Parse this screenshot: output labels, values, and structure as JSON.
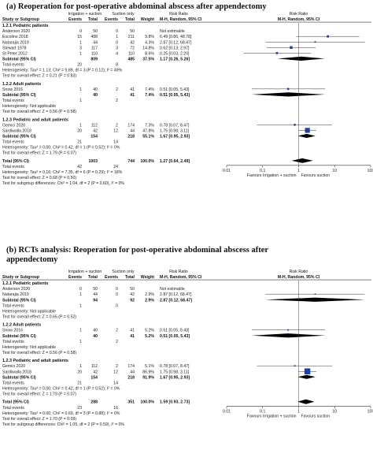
{
  "chart_data": [
    {
      "type": "forest",
      "title": "(a) Reoperation for post-operative abdominal abscess after appendectomy",
      "headers": {
        "study": "Study or Subgroup",
        "group1": "Irrigation + suction",
        "group2": "Suction only",
        "events1": "Events",
        "total1": "Total",
        "events2": "Events",
        "total2": "Total",
        "weight": "Weight",
        "rr_top": "Risk Ratio",
        "rr_bottom": "M-H, Random, 95% CI",
        "plot_top": "Risk Ratio",
        "plot_bottom": "M-H, Random, 95% CI"
      },
      "axis": {
        "scale": "log",
        "ticks": [
          "0.01",
          "0.1",
          "1",
          "10",
          "100"
        ],
        "tick_values": [
          0.01,
          0.1,
          1,
          10,
          100
        ]
      },
      "favours_left": "Favours Irrigation + suction",
      "favours_right": "Favours suction",
      "subgroups": [
        {
          "name": "1.2.1 Pediatric patients",
          "studies": [
            {
              "study": "Anderson 2020",
              "e1": "0",
              "t1": "50",
              "e2": "0",
              "t2": "50",
              "weight": "",
              "ci_text": "Not estimable",
              "rr": null,
              "lo": null,
              "hi": null,
              "w": 0
            },
            {
              "study": "Escolino 2018",
              "e1": "15",
              "t1": "488",
              "e2": "1",
              "t2": "211",
              "weight": "9.8%",
              "ci_text": "6.49 [0.86, 48.78]",
              "rr": 6.49,
              "lo": 0.86,
              "hi": 48.78,
              "w": 9.8
            },
            {
              "study": "Natarajia 2019",
              "e1": "1",
              "t1": "44",
              "e2": "0",
              "t2": "42",
              "weight": "4.3%",
              "ci_text": "2.87 [0.12, 68.47]",
              "rr": 2.87,
              "lo": 0.12,
              "hi": 68.47,
              "w": 4.3
            },
            {
              "study": "Stewart 1978",
              "e1": "3",
              "t1": "117",
              "e2": "3",
              "t2": "72",
              "weight": "14.8%",
              "ci_text": "0.62 [0.13, 2.97]",
              "rr": 0.62,
              "lo": 0.13,
              "hi": 2.97,
              "w": 14.8
            },
            {
              "study": "St Peter 2012",
              "e1": "1",
              "t1": "110",
              "e2": "4",
              "t2": "110",
              "weight": "8.6%",
              "ci_text": "0.25 [0.03, 2.20]",
              "rr": 0.25,
              "lo": 0.03,
              "hi": 2.2,
              "w": 8.6
            }
          ],
          "subtotal": {
            "label": "Subtotal (95% CI)",
            "t1": "809",
            "t2": "485",
            "weight": "37.5%",
            "ci_text": "1.17 [0.26, 5.26]",
            "rr": 1.17,
            "lo": 0.26,
            "hi": 5.26
          },
          "total_events": {
            "label": "Total events",
            "e1": "20",
            "e2": "8"
          },
          "heterogeneity": "Heterogeneity: Tau² = 1.13; Chi² = 5.89, df = 3 (P = 0.12); I² = 49%",
          "overall_effect": "Test for overall effect: Z = 0.21 (P = 0.83)"
        },
        {
          "name": "1.2.2 Adult patients",
          "studies": [
            {
              "study": "Snow 2016",
              "e1": "1",
              "t1": "40",
              "e2": "2",
              "t2": "41",
              "weight": "7.4%",
              "ci_text": "0.51 [0.05, 5.43]",
              "rr": 0.51,
              "lo": 0.05,
              "hi": 5.43,
              "w": 7.4
            }
          ],
          "subtotal": {
            "label": "Subtotal (95% CI)",
            "t1": "40",
            "t2": "41",
            "weight": "7.4%",
            "ci_text": "0.51 [0.05, 5.43]",
            "rr": 0.51,
            "lo": 0.05,
            "hi": 5.43
          },
          "total_events": {
            "label": "Total events",
            "e1": "1",
            "e2": "2"
          },
          "heterogeneity": "Heterogeneity: Not applicable",
          "overall_effect": "Test for overall effect: Z = 0.56 (P = 0.58)"
        },
        {
          "name": "1.2.3 Pediatric and adult patients",
          "studies": [
            {
              "study": "Gemici 2020",
              "e1": "1",
              "t1": "112",
              "e2": "2",
              "t2": "174",
              "weight": "7.3%",
              "ci_text": "0.78 [0.07, 8.47]",
              "rr": 0.78,
              "lo": 0.07,
              "hi": 8.47,
              "w": 7.3
            },
            {
              "study": "Sardiwalla 2018",
              "e1": "20",
              "t1": "42",
              "e2": "12",
              "t2": "44",
              "weight": "47.8%",
              "ci_text": "1.75 [0.98, 3.11]",
              "rr": 1.75,
              "lo": 0.98,
              "hi": 3.11,
              "w": 47.8
            }
          ],
          "subtotal": {
            "label": "Subtotal (95% CI)",
            "t1": "154",
            "t2": "218",
            "weight": "55.1%",
            "ci_text": "1.67 [0.95, 2.93]",
            "rr": 1.67,
            "lo": 0.95,
            "hi": 2.93
          },
          "total_events": {
            "label": "Total events",
            "e1": "21",
            "e2": "14"
          },
          "heterogeneity": "Heterogeneity: Tau² = 0.00; Chi² = 0.42, df = 1 (P = 0.52); I² = 0%",
          "overall_effect": "Test for overall effect: Z = 1.79 (P = 0.07)"
        }
      ],
      "total": {
        "label": "Total (95% CI)",
        "t1": "1003",
        "t2": "744",
        "weight": "100.0%",
        "ci_text": "1.27 [0.64, 2.49]",
        "rr": 1.27,
        "lo": 0.64,
        "hi": 2.49
      },
      "total_events": {
        "label": "Total events",
        "e1": "42",
        "e2": "24"
      },
      "footer": [
        "Heterogeneity: Tau² = 0.16; Chi² = 7.35, df = 6 (P = 0.29); I² = 18%",
        "Test for overall effect: Z = 0.68 (P = 0.50)",
        "Test for subgroup differences: Chi² = 1.04, df = 2 (P = 0.60), I² = 0%"
      ]
    },
    {
      "type": "forest",
      "title": "(b) RCTs analysis: Reoperation for post-operative abdominal abscess after",
      "title2": "appendectomy",
      "headers": {
        "study": "Study or Subgroup",
        "group1": "Irrigation + suction",
        "group2": "Suction only",
        "events1": "Events",
        "total1": "Total",
        "events2": "Events",
        "total2": "Total",
        "weight": "Weight",
        "rr_top": "Risk Ratio",
        "rr_bottom": "M-H, Random, 95% CI",
        "plot_top": "Risk Ratio",
        "plot_bottom": "M-H, Random, 95% CI"
      },
      "axis": {
        "scale": "log",
        "ticks": [
          "0.01",
          "0.1",
          "1",
          "10",
          "100"
        ],
        "tick_values": [
          0.01,
          0.1,
          1,
          10,
          100
        ]
      },
      "favours_left": "Favours Irrigation + suction",
      "favours_right": "Favours suction",
      "subgroups": [
        {
          "name": "1.2.1 Pediatric patients",
          "studies": [
            {
              "study": "Anderson 2020",
              "e1": "0",
              "t1": "50",
              "e2": "0",
              "t2": "50",
              "weight": "",
              "ci_text": "Not estimable",
              "rr": null,
              "lo": null,
              "hi": null,
              "w": 0
            },
            {
              "study": "Natarajia 2019",
              "e1": "1",
              "t1": "44",
              "e2": "0",
              "t2": "42",
              "weight": "2.9%",
              "ci_text": "2.87 [0.12, 68.47]",
              "rr": 2.87,
              "lo": 0.12,
              "hi": 68.47,
              "w": 2.9
            }
          ],
          "subtotal": {
            "label": "Subtotal (95% CI)",
            "t1": "94",
            "t2": "92",
            "weight": "2.9%",
            "ci_text": "2.87 [0.12, 68.47]",
            "rr": 2.87,
            "lo": 0.12,
            "hi": 68.47
          },
          "total_events": {
            "label": "Total events",
            "e1": "1",
            "e2": "0"
          },
          "heterogeneity": "Heterogeneity: Not applicable",
          "overall_effect": "Test for overall effect: Z = 0.65 (P = 0.52)"
        },
        {
          "name": "1.2.2 Adult patients",
          "studies": [
            {
              "study": "Snow 2016",
              "e1": "1",
              "t1": "40",
              "e2": "2",
              "t2": "41",
              "weight": "5.2%",
              "ci_text": "0.51 [0.05, 5.43]",
              "rr": 0.51,
              "lo": 0.05,
              "hi": 5.43,
              "w": 5.2
            }
          ],
          "subtotal": {
            "label": "Subtotal (95% CI)",
            "t1": "40",
            "t2": "41",
            "weight": "5.2%",
            "ci_text": "0.51 [0.05, 5.43]",
            "rr": 0.51,
            "lo": 0.05,
            "hi": 5.43
          },
          "total_events": {
            "label": "Total events",
            "e1": "1",
            "e2": "2"
          },
          "heterogeneity": "Heterogeneity: Not applicable",
          "overall_effect": "Test for overall effect: Z = 0.56 (P = 0.58)"
        },
        {
          "name": "1.2.3 Pediatric and adult patients",
          "studies": [
            {
              "study": "Gemici 2020",
              "e1": "1",
              "t1": "112",
              "e2": "2",
              "t2": "174",
              "weight": "5.1%",
              "ci_text": "0.78 [0.07, 8.47]",
              "rr": 0.78,
              "lo": 0.07,
              "hi": 8.47,
              "w": 5.1
            },
            {
              "study": "Sardiwalla 2018",
              "e1": "20",
              "t1": "42",
              "e2": "12",
              "t2": "44",
              "weight": "86.9%",
              "ci_text": "1.75 [0.98, 3.11]",
              "rr": 1.75,
              "lo": 0.98,
              "hi": 3.11,
              "w": 86.9
            }
          ],
          "subtotal": {
            "label": "Subtotal (95% CI)",
            "t1": "154",
            "t2": "218",
            "weight": "91.9%",
            "ci_text": "1.67 [0.95, 2.93]",
            "rr": 1.67,
            "lo": 0.95,
            "hi": 2.93
          },
          "total_events": {
            "label": "Total events",
            "e1": "21",
            "e2": "14"
          },
          "heterogeneity": "Heterogeneity: Tau² = 0.00; Chi² = 0.42, df = 1 (P = 0.52); I² = 0%",
          "overall_effect": "Test for overall effect: Z = 1.79 (P = 0.07)"
        }
      ],
      "total": {
        "label": "Total (95% CI)",
        "t1": "288",
        "t2": "351",
        "weight": "100.0%",
        "ci_text": "1.59 [0.93, 2.73]",
        "rr": 1.59,
        "lo": 0.93,
        "hi": 2.73
      },
      "total_events": {
        "label": "Total events",
        "e1": "23",
        "e2": "16"
      },
      "footer": [
        "Heterogeneity: Tau² = 0.00; Chi² = 0.69, df = 3 (P = 0.88); I² = 0%",
        "Test for overall effect: Z = 1.70 (P = 0.09)",
        "Test for subgroup differences: Chi² = 1.05, df = 2 (P = 0.59), I² = 0%"
      ]
    }
  ],
  "colors": {
    "marker": "#1f3f99",
    "diamond": "#000000",
    "text": "#111111",
    "rule": "#333333"
  }
}
